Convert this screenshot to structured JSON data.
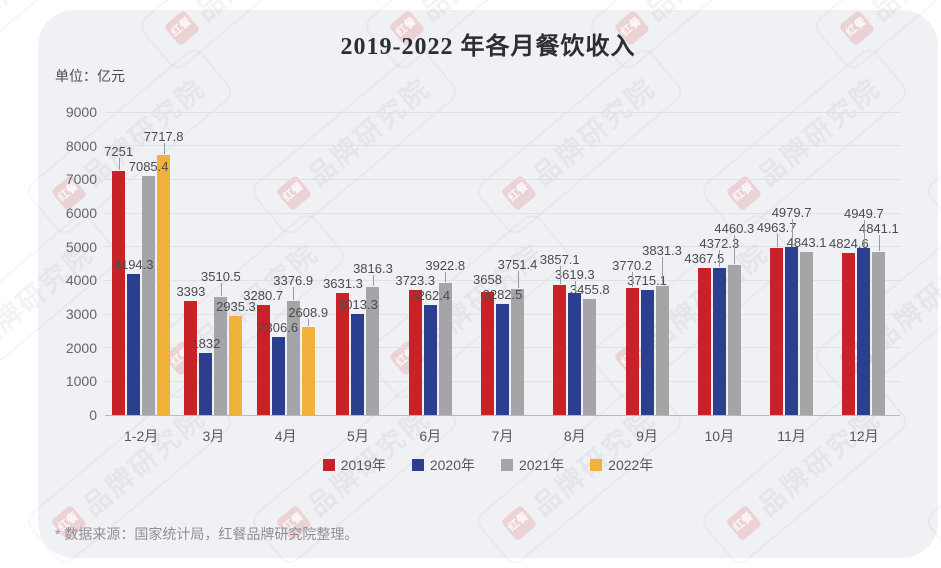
{
  "page": {
    "footer_note": "* 数据来源：国家统计局，红餐品牌研究院整理。"
  },
  "watermark": {
    "logo_text": "红餐",
    "brand_text": "品牌研究院"
  },
  "chart_data": {
    "type": "bar",
    "title": "2019-2022 年各月餐饮收入",
    "unit_label": "单位：亿元",
    "categories": [
      "1-2月",
      "3月",
      "4月",
      "5月",
      "6月",
      "7月",
      "8月",
      "9月",
      "10月",
      "11月",
      "12月"
    ],
    "series": [
      {
        "name": "2019年",
        "color": "#c92128",
        "values": [
          7251,
          3393,
          3280.7,
          3631.3,
          3723.3,
          3658,
          3857.1,
          3770.2,
          4367.5,
          4963.7,
          4824.6
        ]
      },
      {
        "name": "2020年",
        "color": "#2b3f8e",
        "values": [
          4194.3,
          1832,
          2306.6,
          3013.3,
          3262.4,
          3282.5,
          3619.3,
          3715.1,
          4372.3,
          4979.7,
          4949.7
        ]
      },
      {
        "name": "2021年",
        "color": "#a5a5a7",
        "values": [
          7085.4,
          3510.5,
          3376.9,
          3816.3,
          3922.8,
          3751.4,
          3455.8,
          3831.3,
          4460.3,
          4843.1,
          4841.1
        ]
      },
      {
        "name": "2022年",
        "color": "#f1b23b",
        "values": [
          7717.8,
          2935.3,
          2608.9,
          null,
          null,
          null,
          null,
          null,
          null,
          null,
          null
        ]
      }
    ],
    "ylim": [
      0,
      9000
    ],
    "ytick_step": 1000,
    "ytick_labels": [
      "0",
      "1000",
      "2000",
      "3000",
      "4000",
      "5000",
      "6000",
      "7000",
      "8000",
      "9000"
    ],
    "grid": true,
    "legend_position": "bottom"
  }
}
